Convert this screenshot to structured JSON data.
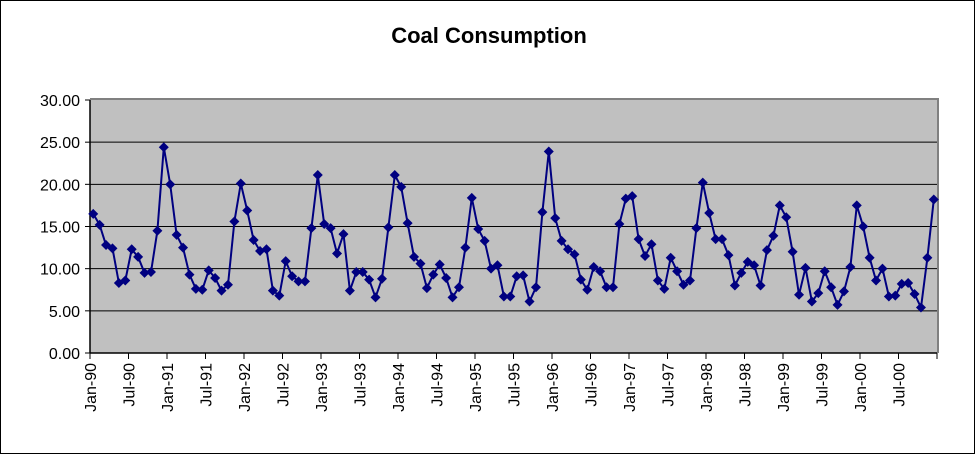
{
  "chart_data": {
    "type": "line",
    "title": "Coal Consumption",
    "xlabel": "",
    "ylabel": "",
    "ylim": [
      0,
      30
    ],
    "y_ticks": [
      "0.00",
      "5.00",
      "10.00",
      "15.00",
      "20.00",
      "25.00",
      "30.00"
    ],
    "y_tick_values": [
      0,
      5,
      10,
      15,
      20,
      25,
      30
    ],
    "x_tick_labels": [
      "Jan-90",
      "Jul-90",
      "Jan-91",
      "Jul-91",
      "Jan-92",
      "Jul-92",
      "Jan-93",
      "Jul-93",
      "Jan-94",
      "Jul-94",
      "Jan-95",
      "Jul-95",
      "Jan-96",
      "Jul-96",
      "Jan-97",
      "Jul-97",
      "Jan-98",
      "Jul-98",
      "Jan-99",
      "Jul-99",
      "Jan-00",
      "Jul-00"
    ],
    "x_tick_month_interval": 6,
    "start_month": "Jan-90",
    "n_months": 132,
    "grid": true,
    "legend": "none",
    "colors": {
      "series": "#000080",
      "plot_background": "#C0C0C0",
      "gridline": "#000000",
      "plot_border": "#808080"
    },
    "series": [
      {
        "name": "Coal Consumption",
        "marker": "diamond",
        "values": [
          16.5,
          15.2,
          12.8,
          12.4,
          8.3,
          8.6,
          12.3,
          11.4,
          9.5,
          9.6,
          14.5,
          24.4,
          20.0,
          14.0,
          12.5,
          9.3,
          7.6,
          7.5,
          9.8,
          8.9,
          7.4,
          8.1,
          15.6,
          20.1,
          16.9,
          13.4,
          12.1,
          12.3,
          7.4,
          6.8,
          10.9,
          9.1,
          8.5,
          8.5,
          14.8,
          21.1,
          15.3,
          14.8,
          11.8,
          14.1,
          7.4,
          9.6,
          9.6,
          8.7,
          6.6,
          8.8,
          14.9,
          21.1,
          19.7,
          15.4,
          11.4,
          10.6,
          7.7,
          9.3,
          10.5,
          8.9,
          6.6,
          7.8,
          12.5,
          18.4,
          14.7,
          13.3,
          10.0,
          10.4,
          6.7,
          6.7,
          9.1,
          9.2,
          6.1,
          7.8,
          16.7,
          23.9,
          16.0,
          13.3,
          12.3,
          11.7,
          8.7,
          7.5,
          10.2,
          9.7,
          7.8,
          7.8,
          15.3,
          18.3,
          18.6,
          13.5,
          11.5,
          12.9,
          8.6,
          7.6,
          11.3,
          9.7,
          8.1,
          8.6,
          14.8,
          20.2,
          16.6,
          13.5,
          13.5,
          11.6,
          8.0,
          9.5,
          10.8,
          10.4,
          8.0,
          12.2,
          13.9,
          17.5,
          16.1,
          12.0,
          6.9,
          10.1,
          6.1,
          7.1,
          9.7,
          7.8,
          5.7,
          7.3,
          10.2,
          17.5,
          15.0,
          11.3,
          8.6,
          10.0,
          6.7,
          6.8,
          8.2,
          8.3,
          7.0,
          5.4,
          11.3,
          18.2
        ]
      }
    ]
  }
}
